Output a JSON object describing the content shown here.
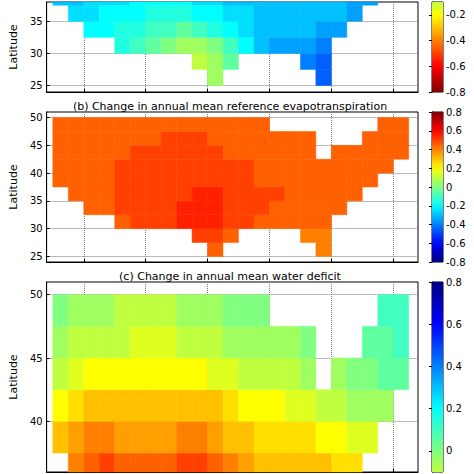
{
  "chart_data": [
    {
      "type": "heatmap",
      "y_label": "Latitude",
      "xlim": [
        -126,
        -66
      ],
      "xticks": [
        -120,
        -110,
        -100,
        -90,
        -80,
        -70
      ],
      "ylim": [
        24,
        38
      ],
      "yticks": [
        25,
        30,
        35
      ],
      "grid": true,
      "tick_labels": "y",
      "x": [
        -123.75,
        -121.25,
        -118.75,
        -116.25,
        -113.75,
        -111.25,
        -108.75,
        -106.25,
        -103.75,
        -101.25,
        -98.75,
        -96.25,
        -93.75,
        -91.25,
        -88.75,
        -86.25,
        -83.75,
        -81.25,
        -78.75,
        -76.25,
        -73.75,
        -71.25,
        -68.75
      ],
      "y": [
        26.25,
        28.75,
        31.25,
        33.75,
        36.25,
        38.75
      ],
      "cells": [
        [
          null,
          null,
          null,
          null,
          null,
          null,
          null,
          null,
          null,
          null,
          -0.05,
          null,
          null,
          null,
          null,
          null,
          null,
          0.45,
          null,
          null,
          null,
          null,
          null
        ],
        [
          null,
          null,
          null,
          null,
          null,
          null,
          null,
          null,
          null,
          -0.1,
          -0.05,
          0.05,
          null,
          null,
          null,
          null,
          0.4,
          0.45,
          null,
          null,
          null,
          null,
          null
        ],
        [
          null,
          null,
          null,
          null,
          0.15,
          0.1,
          0.05,
          0,
          -0.05,
          -0.05,
          0,
          0.1,
          0.2,
          0.3,
          0.35,
          0.35,
          0.35,
          0.4,
          null,
          null,
          null,
          null,
          null
        ],
        [
          null,
          null,
          0.2,
          0.2,
          0.15,
          0.15,
          0.1,
          0.1,
          0.05,
          0.1,
          0.15,
          0.2,
          0.25,
          0.3,
          0.3,
          0.3,
          0.3,
          0.35,
          0.35,
          null,
          null,
          null,
          null
        ],
        [
          null,
          0.25,
          0.25,
          0.2,
          0.2,
          0.2,
          0.15,
          0.15,
          0.15,
          0.2,
          0.2,
          0.25,
          0.25,
          0.3,
          0.3,
          0.3,
          0.3,
          0.3,
          0.3,
          0.35,
          null,
          null,
          null
        ],
        [
          0.3,
          0.3,
          0.25,
          0.25,
          0.25,
          0.2,
          0.2,
          0.2,
          0.2,
          0.25,
          0.25,
          0.3,
          0.3,
          0.3,
          0.3,
          0.3,
          0.3,
          0.3,
          0.3,
          0.35,
          0.35,
          null,
          null
        ]
      ],
      "colorbar": {
        "range": [
          -0.8,
          0.8
        ],
        "lim": [
          -0.8,
          -0.1
        ],
        "ticks": [
          -0.8,
          -0.6,
          -0.4,
          -0.2
        ],
        "colors": [
          "#800000",
          "#ff0000",
          "#ff8000",
          "#ffff00",
          "#80ff80",
          "#00ffff",
          "#0080ff",
          "#0000ff",
          "#000080"
        ]
      }
    },
    {
      "type": "heatmap",
      "title": "(b) Change in annual mean reference evapotranspiration",
      "y_label": "Latitude",
      "xlim": [
        -126,
        -66
      ],
      "xticks": [
        -120,
        -110,
        -100,
        -90,
        -80,
        -70
      ],
      "ylim": [
        24,
        51
      ],
      "yticks": [
        25,
        30,
        35,
        40,
        45,
        50
      ],
      "grid": true,
      "tick_labels": "y",
      "x": [
        -123.75,
        -121.25,
        -118.75,
        -116.25,
        -113.75,
        -111.25,
        -108.75,
        -106.25,
        -103.75,
        -101.25,
        -98.75,
        -96.25,
        -93.75,
        -91.25,
        -88.75,
        -86.25,
        -83.75,
        -81.25,
        -78.75,
        -76.25,
        -73.75,
        -71.25,
        -68.75
      ],
      "y": [
        26.25,
        28.75,
        31.25,
        33.75,
        36.25,
        38.75,
        41.25,
        43.75,
        46.25,
        48.75
      ],
      "cells": [
        [
          null,
          null,
          null,
          null,
          null,
          null,
          null,
          null,
          null,
          null,
          0.45,
          null,
          null,
          null,
          null,
          null,
          null,
          0.4,
          null,
          null,
          null,
          null,
          null
        ],
        [
          null,
          null,
          null,
          null,
          null,
          null,
          null,
          null,
          null,
          0.5,
          0.5,
          0.45,
          null,
          null,
          null,
          null,
          0.4,
          0.4,
          null,
          null,
          null,
          null,
          null
        ],
        [
          null,
          null,
          null,
          null,
          0.45,
          0.5,
          0.5,
          0.5,
          0.55,
          0.55,
          0.55,
          0.5,
          0.5,
          0.45,
          0.45,
          0.45,
          0.45,
          0.45,
          null,
          null,
          null,
          null,
          null
        ],
        [
          null,
          null,
          0.45,
          0.45,
          0.5,
          0.5,
          0.5,
          0.5,
          0.55,
          0.55,
          0.55,
          0.5,
          0.5,
          0.5,
          0.45,
          0.45,
          0.45,
          0.45,
          0.45,
          null,
          null,
          null,
          null
        ],
        [
          null,
          0.45,
          0.45,
          0.45,
          0.5,
          0.5,
          0.5,
          0.5,
          0.5,
          0.55,
          0.55,
          0.5,
          0.5,
          0.5,
          0.5,
          0.45,
          0.45,
          0.45,
          0.45,
          0.45,
          null,
          null,
          null
        ],
        [
          0.45,
          0.45,
          0.45,
          0.45,
          0.5,
          0.5,
          0.5,
          0.5,
          0.5,
          0.5,
          0.5,
          0.5,
          0.5,
          0.45,
          0.45,
          0.45,
          0.45,
          0.45,
          0.45,
          0.45,
          0.45,
          null,
          null
        ],
        [
          0.45,
          0.45,
          0.45,
          0.45,
          0.5,
          0.5,
          0.5,
          0.5,
          0.5,
          0.5,
          0.5,
          0.5,
          0.5,
          0.45,
          0.45,
          0.45,
          0.45,
          0.45,
          0.45,
          0.45,
          0.45,
          0.45,
          null
        ],
        [
          0.45,
          0.45,
          0.45,
          0.45,
          0.45,
          0.5,
          0.5,
          0.5,
          0.5,
          0.5,
          0.5,
          0.45,
          0.45,
          0.45,
          0.45,
          0.45,
          0.45,
          null,
          0.45,
          0.45,
          0.45,
          0.45,
          0.45
        ],
        [
          0.45,
          0.45,
          0.45,
          0.45,
          0.45,
          0.45,
          0.45,
          0.5,
          0.5,
          0.5,
          0.45,
          0.45,
          0.45,
          0.45,
          0.45,
          0.45,
          0.45,
          null,
          null,
          null,
          0.45,
          0.45,
          0.45
        ],
        [
          0.45,
          0.45,
          0.45,
          0.45,
          0.45,
          0.45,
          0.45,
          0.45,
          0.45,
          0.45,
          0.45,
          0.45,
          0.45,
          0.45,
          null,
          null,
          null,
          null,
          null,
          null,
          null,
          0.45,
          0.45
        ]
      ],
      "colorbar": {
        "range": [
          -0.8,
          0.8
        ],
        "lim": [
          -0.8,
          0.8
        ],
        "ticks": [
          -0.8,
          -0.6,
          -0.4,
          -0.2,
          0,
          0.2,
          0.4,
          0.6,
          0.8
        ],
        "colors": [
          "#000080",
          "#0000ff",
          "#0080ff",
          "#00ffff",
          "#80ff80",
          "#ffff00",
          "#ff8000",
          "#ff0000",
          "#800000"
        ]
      }
    },
    {
      "type": "heatmap",
      "title": "(c) Change in annual mean water deficit",
      "y_label": "Latitude",
      "xlim": [
        -126,
        -66
      ],
      "xticks": [
        -120,
        -110,
        -100,
        -90,
        -80,
        -70
      ],
      "ylim": [
        36,
        51
      ],
      "yticks": [
        40,
        45,
        50
      ],
      "grid": true,
      "tick_labels": "y",
      "x": [
        -123.75,
        -121.25,
        -118.75,
        -116.25,
        -113.75,
        -111.25,
        -108.75,
        -106.25,
        -103.75,
        -101.25,
        -98.75,
        -96.25,
        -93.75,
        -91.25,
        -88.75,
        -86.25,
        -83.75,
        -81.25,
        -78.75,
        -76.25,
        -73.75,
        -71.25,
        -68.75
      ],
      "y": [
        36.25,
        38.75,
        41.25,
        43.75,
        46.25,
        48.75
      ],
      "cells": [
        [
          null,
          -0.4,
          -0.45,
          -0.5,
          -0.45,
          -0.45,
          -0.45,
          -0.45,
          -0.5,
          -0.5,
          -0.45,
          -0.4,
          -0.35,
          -0.3,
          -0.3,
          -0.3,
          -0.3,
          -0.3,
          -0.25,
          -0.25,
          null,
          null,
          null
        ],
        [
          -0.3,
          -0.35,
          -0.4,
          -0.4,
          -0.35,
          -0.35,
          -0.35,
          -0.35,
          -0.4,
          -0.4,
          -0.35,
          -0.3,
          -0.3,
          -0.25,
          -0.25,
          -0.25,
          -0.25,
          -0.2,
          -0.2,
          -0.15,
          -0.15,
          null,
          null
        ],
        [
          -0.2,
          -0.25,
          -0.3,
          -0.3,
          -0.3,
          -0.3,
          -0.3,
          -0.3,
          -0.3,
          -0.3,
          -0.3,
          -0.25,
          -0.2,
          -0.2,
          -0.2,
          -0.15,
          -0.15,
          -0.1,
          -0.1,
          -0.05,
          -0.05,
          -0.05,
          null
        ],
        [
          -0.1,
          -0.15,
          -0.2,
          -0.2,
          -0.2,
          -0.2,
          -0.2,
          -0.2,
          -0.2,
          -0.2,
          -0.15,
          -0.15,
          -0.1,
          -0.1,
          -0.1,
          -0.1,
          -0.05,
          null,
          -0.05,
          0,
          0,
          0.05,
          0.05
        ],
        [
          -0.05,
          -0.1,
          -0.1,
          -0.1,
          -0.1,
          -0.15,
          -0.15,
          -0.15,
          -0.1,
          -0.1,
          -0.1,
          -0.05,
          -0.05,
          -0.05,
          -0.05,
          -0.05,
          0,
          null,
          null,
          null,
          0.05,
          0.05,
          0.1
        ],
        [
          0,
          -0.05,
          -0.05,
          -0.05,
          -0.1,
          -0.1,
          -0.1,
          -0.1,
          -0.05,
          -0.05,
          -0.05,
          0,
          0,
          0,
          null,
          null,
          null,
          null,
          null,
          null,
          null,
          0.1,
          0.1
        ]
      ],
      "colorbar": {
        "range": [
          -0.8,
          0.8
        ],
        "lim": [
          -0.1,
          0.8
        ],
        "ticks": [
          0,
          0.2,
          0.4,
          0.6,
          0.8
        ],
        "colors": [
          "#800000",
          "#ff0000",
          "#ff8000",
          "#ffff00",
          "#80ff80",
          "#00ffff",
          "#0080ff",
          "#0000ff",
          "#000080"
        ]
      }
    }
  ]
}
